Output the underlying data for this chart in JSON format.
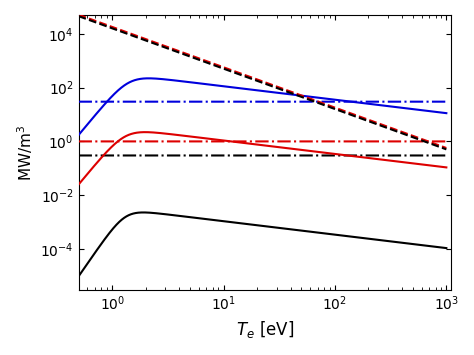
{
  "Te_min": 0.5,
  "Te_max": 1000,
  "n_points": 3000,
  "ylabel": "MW/m$^3$",
  "xlabel": "$T_e$ [eV]",
  "ylim_min": 3e-06,
  "ylim_max": 50000.0,
  "xlim_min": 0.5,
  "xlim_max": 1100,
  "colors": {
    "blue": "#0000dd",
    "red": "#dd0000",
    "black": "#000000"
  },
  "linewidth": 1.5,
  "blue_solid_A": 300.0,
  "blue_solid_peak": 1.4,
  "blue_solid_low_exp": 5,
  "blue_solid_high_exp": -0.5,
  "red_solid_A": 3.0,
  "red_solid_peak": 1.3,
  "red_solid_low_exp": 5,
  "red_solid_high_exp": -0.5,
  "black_solid_A": 0.003,
  "black_solid_peak": 1.3,
  "black_solid_low_exp": 6,
  "black_solid_high_exp": -0.5,
  "blue_dashdot_val": 30.0,
  "red_dashdot_val": 1.0,
  "black_dashdot_val": 0.3,
  "top_dash_A1": 18000.0,
  "top_dash_A2": 16000.0,
  "top_dash_exp": -1.5,
  "top_dash_Te0": 1.0
}
